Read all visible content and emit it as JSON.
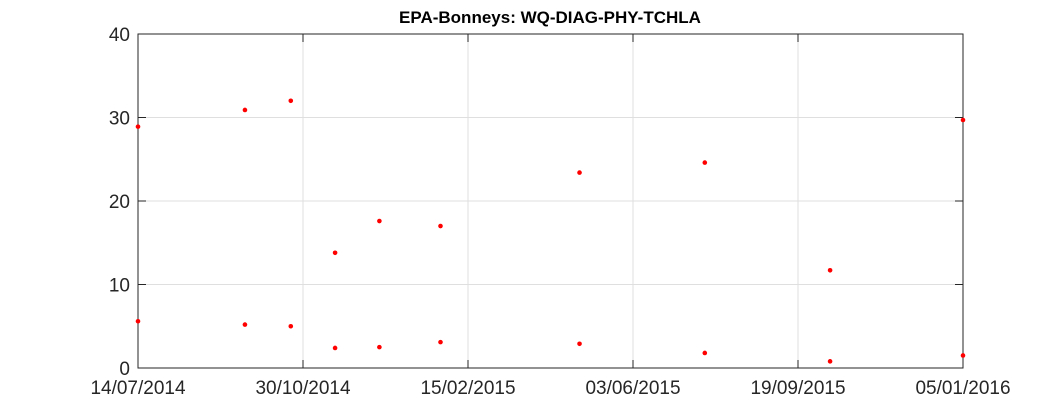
{
  "chart_data": {
    "type": "scatter",
    "title": "EPA-Bonneys: WQ-DIAG-PHY-TCHLA",
    "xlabel": "",
    "ylabel": "",
    "xlim": [
      "2014-07-14",
      "2016-01-05"
    ],
    "ylim": [
      0,
      40
    ],
    "x_ticks": [
      "14/07/2014",
      "30/10/2014",
      "15/02/2015",
      "03/06/2015",
      "19/09/2015",
      "05/01/2016"
    ],
    "y_ticks": [
      "0",
      "10",
      "20",
      "30",
      "40"
    ],
    "grid": true,
    "marker_color": "#ff0000",
    "series": [
      {
        "points": [
          {
            "x": "2014-07-14",
            "y": 28.9
          },
          {
            "x": "2014-07-14",
            "y": 5.6
          },
          {
            "x": "2014-09-22",
            "y": 30.9
          },
          {
            "x": "2014-09-22",
            "y": 5.2
          },
          {
            "x": "2014-10-22",
            "y": 32.0
          },
          {
            "x": "2014-10-22",
            "y": 5.0
          },
          {
            "x": "2014-11-20",
            "y": 13.8
          },
          {
            "x": "2014-11-20",
            "y": 2.4
          },
          {
            "x": "2014-12-19",
            "y": 17.6
          },
          {
            "x": "2014-12-19",
            "y": 2.5
          },
          {
            "x": "2015-01-28",
            "y": 17.0
          },
          {
            "x": "2015-01-28",
            "y": 3.1
          },
          {
            "x": "2015-04-29",
            "y": 23.4
          },
          {
            "x": "2015-04-29",
            "y": 2.9
          },
          {
            "x": "2015-07-20",
            "y": 24.6
          },
          {
            "x": "2015-07-20",
            "y": 1.8
          },
          {
            "x": "2015-10-10",
            "y": 11.7
          },
          {
            "x": "2015-10-10",
            "y": 0.8
          },
          {
            "x": "2016-01-05",
            "y": 29.7
          },
          {
            "x": "2016-01-05",
            "y": 1.5
          }
        ]
      }
    ]
  }
}
